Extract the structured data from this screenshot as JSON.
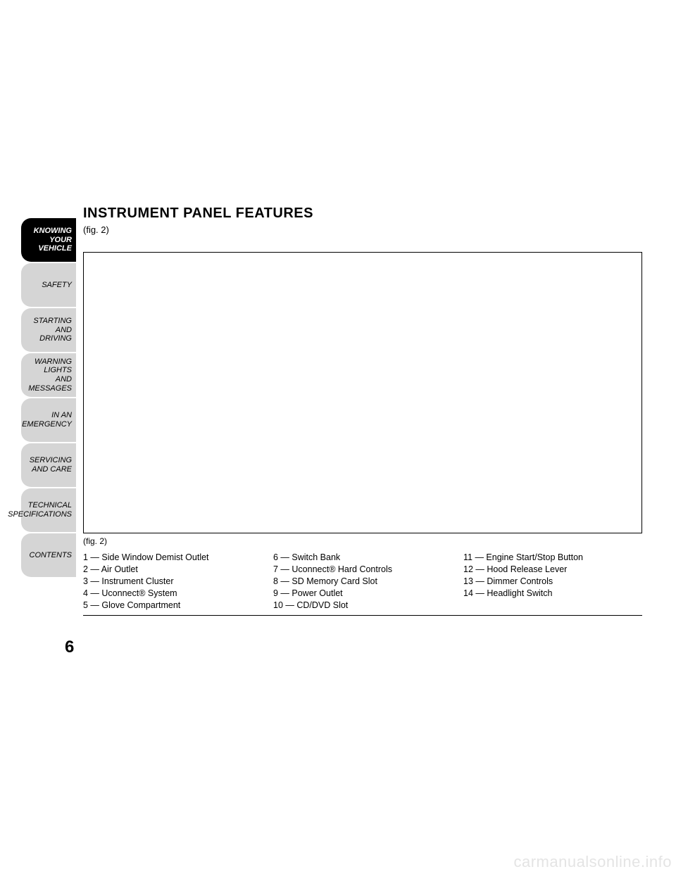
{
  "sidebar": {
    "tabs": [
      {
        "label": "KNOWING\nYOUR\nVEHICLE",
        "active": true
      },
      {
        "label": "SAFETY",
        "active": false
      },
      {
        "label": "STARTING\nAND\nDRIVING",
        "active": false
      },
      {
        "label": "WARNING\nLIGHTS\nAND\nMESSAGES",
        "active": false
      },
      {
        "label": "IN AN\nEMERGENCY",
        "active": false
      },
      {
        "label": "SERVICING\nAND CARE",
        "active": false
      },
      {
        "label": "TECHNICAL\nSPECIFICATIONS",
        "active": false
      },
      {
        "label": "CONTENTS",
        "active": false
      }
    ]
  },
  "content": {
    "title": "INSTRUMENT PANEL FEATURES",
    "figref": "(fig.  2)",
    "fig_caption": "(fig. 2)",
    "legend_cols": [
      [
        "1 — Side Window Demist Outlet",
        "2 — Air Outlet",
        "3 — Instrument Cluster",
        "4 — Uconnect® System",
        "5 — Glove Compartment"
      ],
      [
        "6 — Switch Bank",
        "7 — Uconnect® Hard Controls",
        "8 — SD Memory Card Slot",
        "9 — Power Outlet",
        "10 — CD/DVD Slot"
      ],
      [
        "11 — Engine Start/Stop Button",
        "12 — Hood Release Lever",
        "13 — Dimmer Controls",
        "14 — Headlight Switch"
      ]
    ]
  },
  "page_number": "6",
  "watermark": "carmanualsonline.info",
  "colors": {
    "tab_active_bg": "#000000",
    "tab_active_fg": "#ffffff",
    "tab_inactive_bg": "#d5d5d5",
    "tab_inactive_fg": "#000000",
    "page_bg": "#ffffff",
    "watermark_fg": "#e4e4e4"
  }
}
